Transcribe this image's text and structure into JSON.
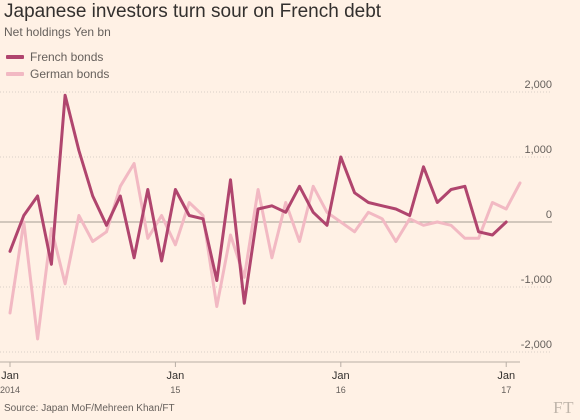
{
  "header": {
    "title": "Japanese investors turn sour on French debt",
    "subtitle": "Net holdings Yen bn"
  },
  "footer": {
    "source": "Source: Japan MoF/Mehreen Khan/FT",
    "logo": "FT"
  },
  "colors": {
    "background": "#fff1e5",
    "french": "#b0456e",
    "german": "#f2b9c3",
    "grid": "#d8cfc6",
    "zero_line": "#b8aea5"
  },
  "chart_data": {
    "type": "line",
    "title": "Japanese investors turn sour on French debt",
    "subtitle": "Net holdings Yen bn",
    "xlabel": "",
    "ylabel": "",
    "ylim": [
      -2000,
      2000
    ],
    "yticks": [
      2000,
      1000,
      0,
      -1000,
      -2000
    ],
    "ytick_labels": [
      "2,000",
      "1,000",
      "0",
      "-1,000",
      "-2,000"
    ],
    "x_start": "2014-01",
    "x_end": "2017-02",
    "xticks": [
      {
        "x": "2014-01",
        "label": "Jan",
        "sublabel": "2014"
      },
      {
        "x": "2015-01",
        "label": "Jan",
        "sublabel": "15"
      },
      {
        "x": "2016-01",
        "label": "Jan",
        "sublabel": "16"
      },
      {
        "x": "2017-01",
        "label": "Jan",
        "sublabel": "17"
      }
    ],
    "legend_position": "top-left",
    "grid": true,
    "x": [
      "2014-01",
      "2014-02",
      "2014-03",
      "2014-04",
      "2014-05",
      "2014-06",
      "2014-07",
      "2014-08",
      "2014-09",
      "2014-10",
      "2014-11",
      "2014-12",
      "2015-01",
      "2015-02",
      "2015-03",
      "2015-04",
      "2015-05",
      "2015-06",
      "2015-07",
      "2015-08",
      "2015-09",
      "2015-10",
      "2015-11",
      "2015-12",
      "2016-01",
      "2016-02",
      "2016-03",
      "2016-04",
      "2016-05",
      "2016-06",
      "2016-07",
      "2016-08",
      "2016-09",
      "2016-10",
      "2016-11",
      "2016-12",
      "2017-01",
      "2017-02"
    ],
    "series": [
      {
        "name": "French bonds",
        "values": [
          -450,
          100,
          400,
          -650,
          1950,
          1100,
          400,
          -50,
          400,
          -550,
          500,
          -600,
          500,
          100,
          50,
          -900,
          650,
          -1250,
          200,
          250,
          150,
          550,
          150,
          -50,
          1000,
          450,
          300,
          250,
          200,
          100,
          850,
          300,
          500,
          550,
          -150,
          -200,
          0,
          null
        ],
        "color": "#b0456e"
      },
      {
        "name": "German bonds",
        "values": [
          -1400,
          0,
          -1800,
          -100,
          -950,
          100,
          -300,
          -150,
          550,
          900,
          -250,
          100,
          -350,
          300,
          100,
          -1300,
          -200,
          -850,
          500,
          -550,
          300,
          -300,
          550,
          150,
          0,
          -150,
          150,
          50,
          -300,
          50,
          -50,
          0,
          -50,
          -250,
          -250,
          300,
          200,
          600
        ]
      }
    ]
  }
}
